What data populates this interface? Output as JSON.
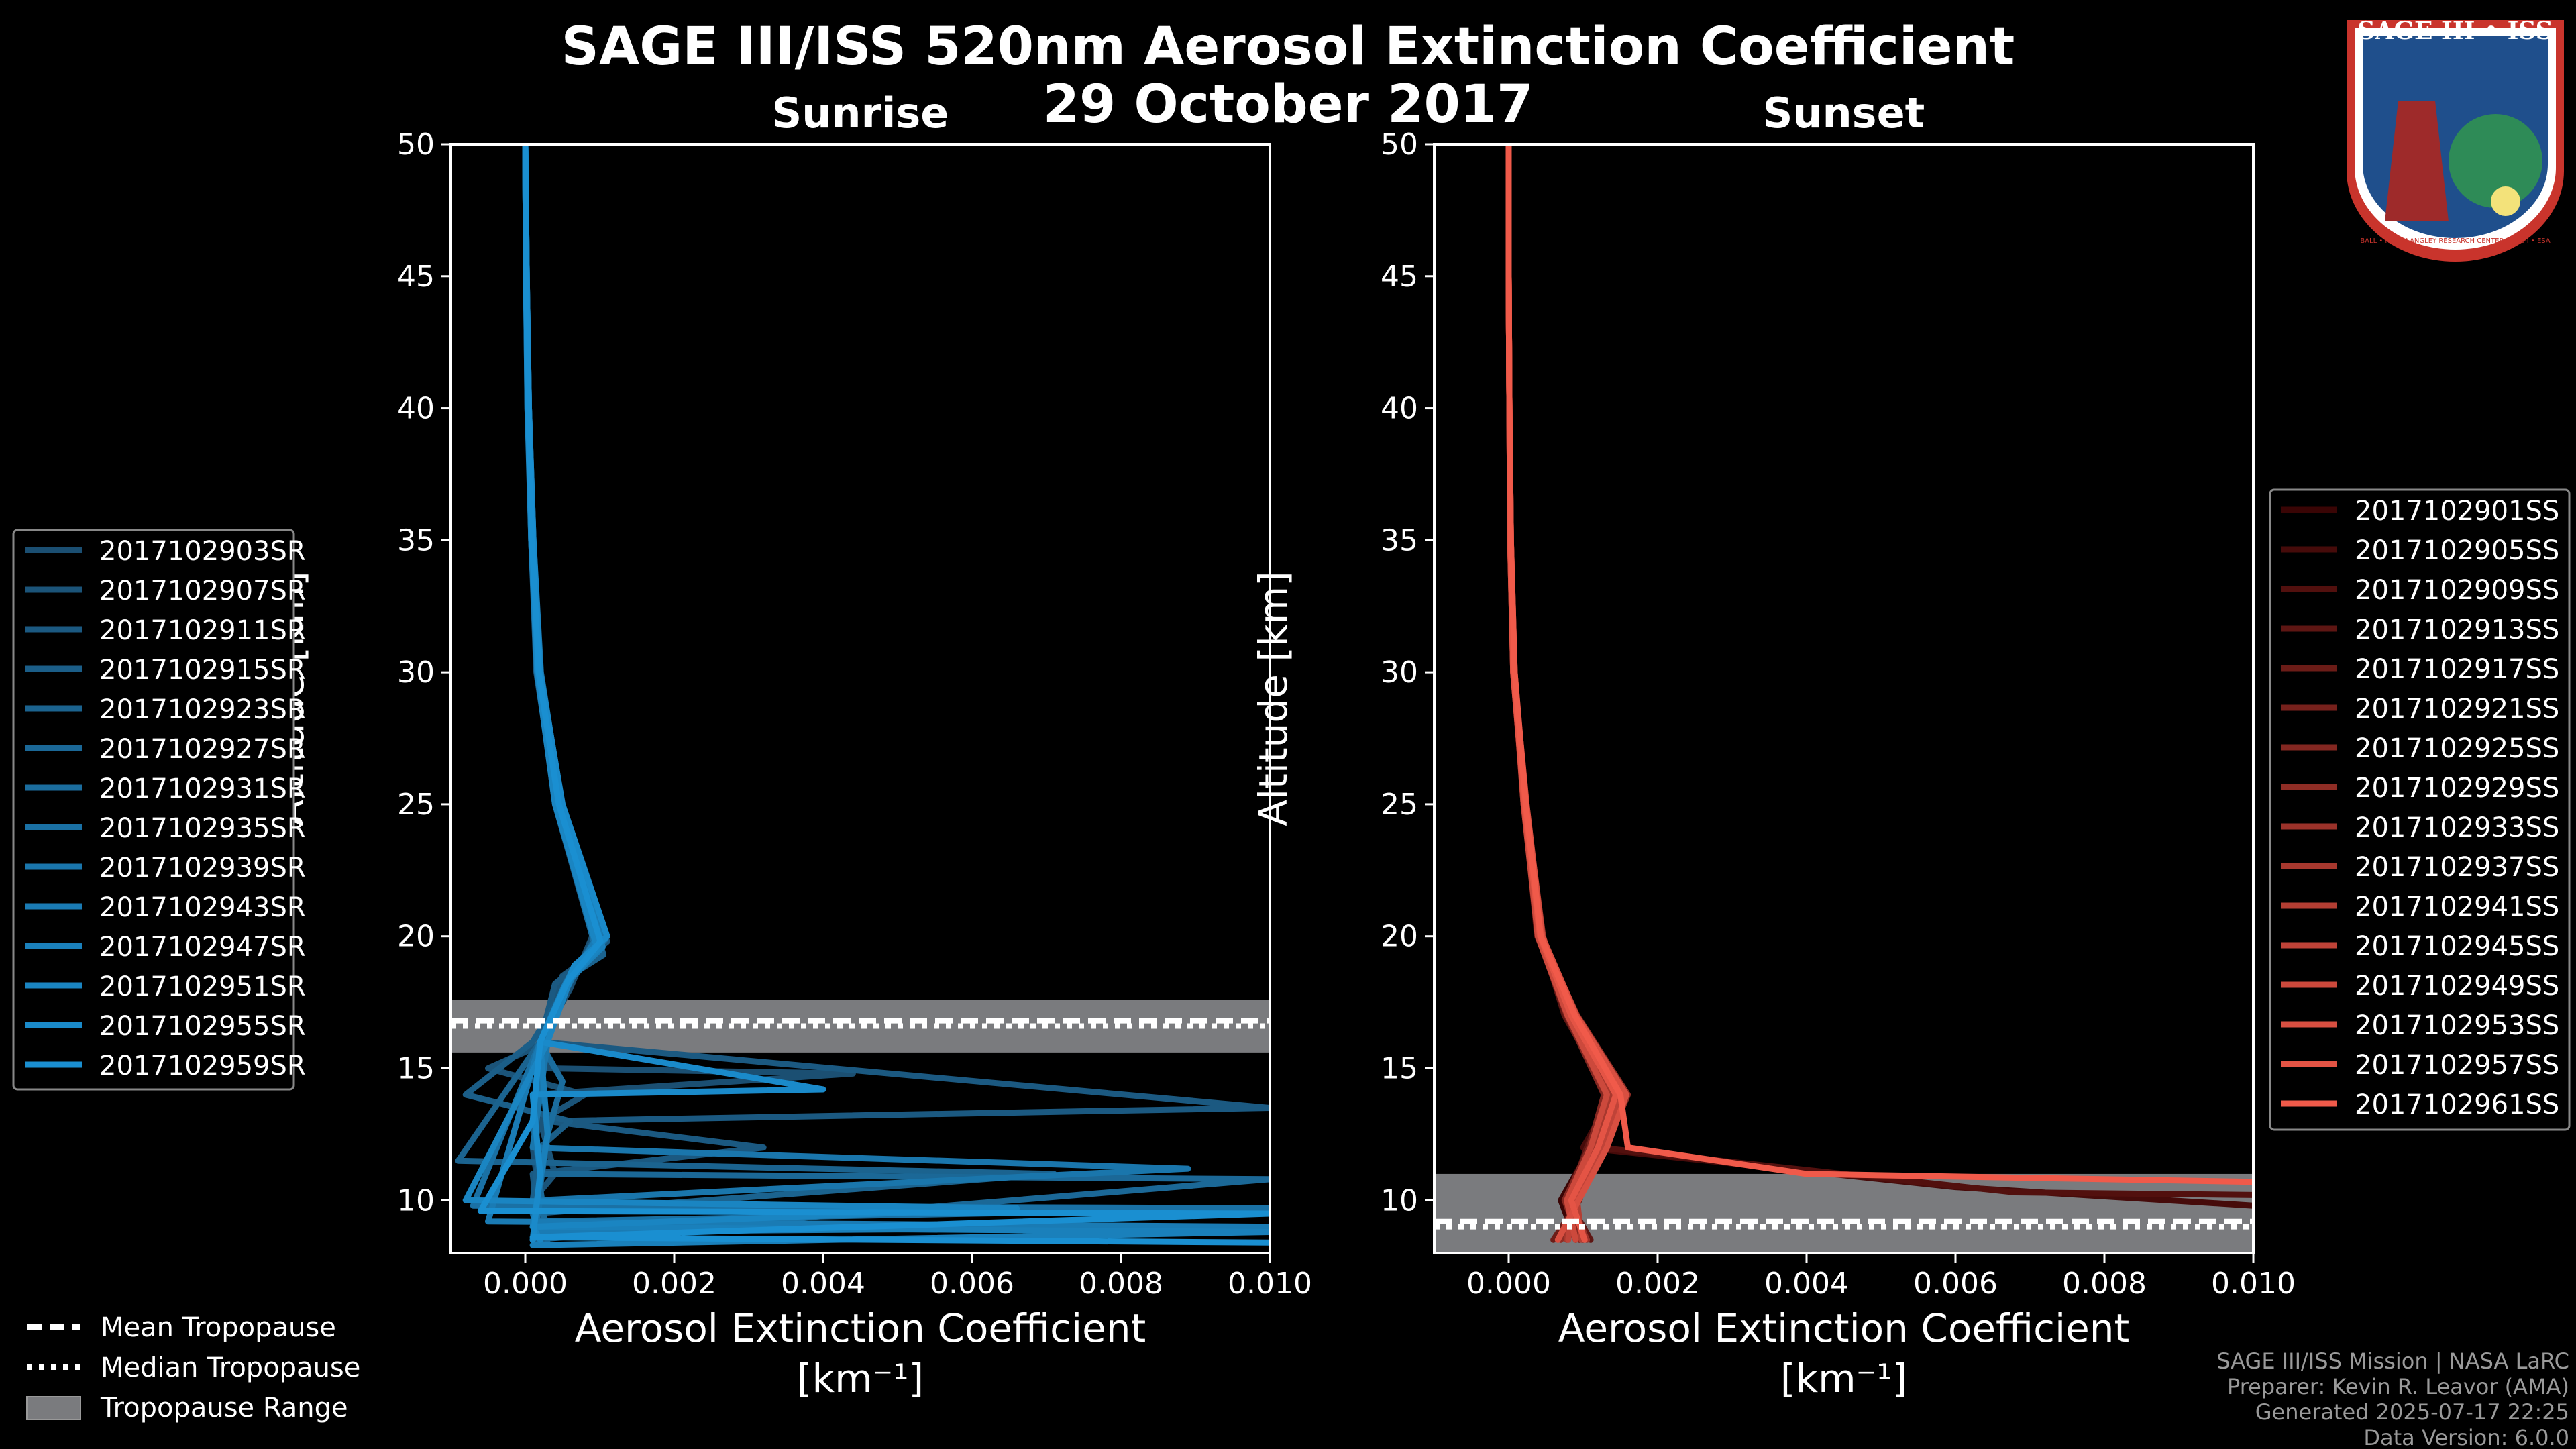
{
  "title_line1": "SAGE III/ISS 520nm Aerosol Extinction Coefficient",
  "title_line2": "29 October 2017",
  "logo": {
    "text": "SAGE III • ISS",
    "ring_text": "BALL • NASA LANGLEY RESEARCH CENTER • TAS-I • ESA"
  },
  "colors": {
    "sunrise": "#1a8fd1",
    "sunset_light": "#f05a4a",
    "sunset_dark": "#3a0505",
    "trop_band": "#7a7b7e"
  },
  "footer": [
    "SAGE III/ISS Mission | NASA LaRC",
    "Preparer: Kevin R. Leavor (AMA)",
    "Generated 2025-07-17 22:25",
    "Data Version: 6.0.0"
  ],
  "tropopause_legend": [
    {
      "style": "dashed",
      "label": "Mean Tropopause"
    },
    {
      "style": "dotted",
      "label": "Median Tropopause"
    },
    {
      "style": "patch",
      "label": "Tropopause Range"
    }
  ],
  "chart_data": [
    {
      "type": "line",
      "title": "Sunrise",
      "xlabel": "Aerosol Extinction Coefficient",
      "xunits": "[km⁻¹]",
      "ylabel": "Altitude [km]",
      "xlim": [
        -0.001,
        0.01
      ],
      "ylim": [
        8,
        50
      ],
      "xticks": [
        "0.000",
        "0.002",
        "0.004",
        "0.006",
        "0.008",
        "0.010"
      ],
      "xtick_values": [
        0,
        0.002,
        0.004,
        0.006,
        0.008,
        0.01
      ],
      "yticks": [
        10,
        15,
        20,
        25,
        30,
        35,
        40,
        45,
        50
      ],
      "tropopause": {
        "mean": 16.8,
        "median": 16.6,
        "min": 15.6,
        "max": 17.6
      },
      "series": [
        {
          "name": "2017102903SR",
          "x": [
            0.0,
            1e-05,
            4e-05,
            8e-05,
            0.00016,
            0.0004,
            0.0009,
            0.0006,
            0.0002,
            0.0003,
            0.0044,
            0.0001,
            0.0002,
            0.0001,
            0.0002,
            0.0003
          ],
          "y": [
            50,
            45,
            40,
            35,
            30,
            25,
            20,
            18,
            16,
            15,
            14.8,
            14,
            13,
            12,
            10,
            8.5
          ]
        },
        {
          "name": "2017102907SR",
          "x": [
            0.0,
            1e-05,
            4e-05,
            9e-05,
            0.00018,
            0.00045,
            0.001,
            0.0005,
            0.0003,
            -0.0005,
            0.0008,
            0.0002,
            0.0004,
            0.0001,
            0.0003
          ],
          "y": [
            50,
            45,
            40,
            35,
            30,
            25,
            19.5,
            18.5,
            16,
            15,
            14,
            13,
            11,
            10,
            8.5
          ]
        },
        {
          "name": "2017102911SR",
          "x": [
            0.0,
            2e-05,
            5e-05,
            0.0001,
            0.0002,
            0.0005,
            0.0011,
            0.0004,
            0.0002,
            0.01,
            0.0003,
            0.0032,
            0.0001,
            0.0002
          ],
          "y": [
            50,
            45,
            40,
            35,
            30,
            25,
            19.8,
            18.2,
            16,
            13.5,
            13,
            12,
            11,
            8.5
          ]
        },
        {
          "name": "2017102915SR",
          "x": [
            0.0,
            1e-05,
            4e-05,
            8e-05,
            0.00015,
            0.00042,
            0.00095,
            0.0007,
            0.0001,
            -0.0008,
            0.0006,
            0.0002,
            0.0001,
            0.0002
          ],
          "y": [
            50,
            45,
            40,
            35,
            30,
            25,
            20,
            18.8,
            16,
            14,
            13,
            12,
            10,
            8.5
          ]
        },
        {
          "name": "2017102923SR",
          "x": [
            0.0,
            2e-05,
            5e-05,
            0.00011,
            0.0002,
            0.00048,
            0.00105,
            0.0006,
            0.0002,
            -0.0009,
            0.0071,
            0.0001,
            0.0002
          ],
          "y": [
            50,
            45,
            40,
            35,
            30,
            25,
            19.3,
            18.5,
            16,
            11.5,
            11,
            9.5,
            8.5
          ]
        },
        {
          "name": "2017102927SR",
          "x": [
            0.0,
            1e-05,
            3e-05,
            9e-05,
            0.00017,
            0.00044,
            0.00098,
            0.00055,
            0.0003,
            0.0001,
            0.0002,
            0.01,
            0.0001
          ],
          "y": [
            50,
            45,
            40,
            35,
            30,
            25,
            19.7,
            18.3,
            16,
            13,
            11,
            10.8,
            8.5
          ]
        },
        {
          "name": "2017102931SR",
          "x": [
            0.0,
            2e-05,
            4e-05,
            0.0001,
            0.00019,
            0.00046,
            0.00102,
            0.00065,
            0.0002,
            0.0005,
            0.0003,
            0.0002,
            0.0003
          ],
          "y": [
            50,
            45,
            40,
            35,
            30,
            25,
            20.2,
            18.6,
            16,
            14.5,
            12.5,
            10.5,
            8.5
          ]
        },
        {
          "name": "2017102935SR",
          "x": [
            0.0,
            1e-05,
            4e-05,
            8e-05,
            0.00016,
            0.00041,
            0.00096,
            0.00052,
            0.0002,
            -0.0007,
            0.01,
            0.0001,
            0.0002
          ],
          "y": [
            50,
            45,
            40,
            35,
            30,
            25,
            19.4,
            18.1,
            16,
            9.8,
            9.7,
            9.2,
            8.5
          ]
        },
        {
          "name": "2017102939SR",
          "x": [
            0.0,
            2e-05,
            5e-05,
            0.00011,
            0.00021,
            0.00049,
            0.00108,
            0.00058,
            0.0003,
            0.0001,
            0.0089,
            0.0002,
            0.0001
          ],
          "y": [
            50,
            45,
            40,
            35,
            30,
            25,
            19.9,
            18.4,
            16,
            12,
            11.2,
            10,
            8.5
          ]
        },
        {
          "name": "2017102943SR",
          "x": [
            0.0,
            1e-05,
            4e-05,
            9e-05,
            0.00017,
            0.00043,
            0.001,
            0.00068,
            0.0002,
            -0.0005,
            0.01,
            0.0002,
            0.0001
          ],
          "y": [
            50,
            45,
            40,
            35,
            30,
            25,
            20.1,
            18.7,
            16,
            9.2,
            9.0,
            8.8,
            8.5
          ]
        },
        {
          "name": "2017102947SR",
          "x": [
            0.0,
            2e-05,
            5e-05,
            0.0001,
            0.00019,
            0.00047,
            0.00104,
            0.00054,
            0.0002,
            0.0003,
            0.0001,
            0.01,
            0.0001
          ],
          "y": [
            50,
            45,
            40,
            35,
            30,
            25,
            19.6,
            18.2,
            16,
            12.5,
            9,
            8.8,
            8.3
          ]
        },
        {
          "name": "2017102951SR",
          "x": [
            0.0,
            1e-05,
            3e-05,
            8e-05,
            0.00016,
            0.0004,
            0.00097,
            0.00062,
            0.0003,
            -0.0008,
            0.0066,
            0.0001,
            0.0002
          ],
          "y": [
            50,
            45,
            40,
            35,
            30,
            25,
            19.5,
            18.5,
            16,
            10,
            9.7,
            9,
            8.5
          ]
        },
        {
          "name": "2017102955SR",
          "x": [
            0.0,
            2e-05,
            5e-05,
            0.00011,
            0.0002,
            0.0005,
            0.0011,
            0.00066,
            0.0002,
            0.004,
            0.0001,
            0.0002,
            0.0001
          ],
          "y": [
            50,
            45,
            40,
            35,
            30,
            25,
            20,
            18.9,
            16,
            14.2,
            14,
            11,
            8.5
          ]
        },
        {
          "name": "2017102959SR",
          "x": [
            0.0,
            1e-05,
            4e-05,
            9e-05,
            0.00018,
            0.00045,
            0.00101,
            0.00057,
            0.0002,
            0.0001,
            -0.0006,
            0.01,
            0.0001,
            0.01
          ],
          "y": [
            50,
            45,
            40,
            35,
            30,
            25,
            19.8,
            18.3,
            16,
            13,
            9.6,
            9.5,
            8.6,
            8.4
          ]
        }
      ]
    },
    {
      "type": "line",
      "title": "Sunset",
      "xlabel": "Aerosol Extinction Coefficient",
      "xunits": "[km⁻¹]",
      "ylabel": "Altitude [km]",
      "xlim": [
        -0.001,
        0.01
      ],
      "ylim": [
        8,
        50
      ],
      "xticks": [
        "0.000",
        "0.002",
        "0.004",
        "0.006",
        "0.008",
        "0.010"
      ],
      "xtick_values": [
        0,
        0.002,
        0.004,
        0.006,
        0.008,
        0.01
      ],
      "yticks": [
        10,
        15,
        20,
        25,
        30,
        35,
        40,
        45,
        50
      ],
      "tropopause": {
        "mean": 9.2,
        "median": 9.0,
        "min": 8.0,
        "max": 11.0
      },
      "series": [
        {
          "name": "2017102901SS",
          "x": [
            0.0,
            0.0,
            1e-05,
            2e-05,
            6e-05,
            0.0002,
            0.0004,
            0.0008,
            0.0013,
            0.0011,
            0.0007,
            0.0009
          ],
          "y": [
            50,
            45,
            40,
            35,
            30,
            25,
            20,
            17,
            14,
            12,
            10,
            8.5
          ]
        },
        {
          "name": "2017102905SS",
          "x": [
            0.0,
            0.0,
            1e-05,
            3e-05,
            7e-05,
            0.00022,
            0.00045,
            0.00085,
            0.0014,
            0.001,
            0.006,
            0.01
          ],
          "y": [
            50,
            45,
            40,
            35,
            30,
            25,
            20,
            17,
            14,
            12,
            10.5,
            9.8
          ]
        },
        {
          "name": "2017102909SS",
          "x": [
            0.0,
            0.0,
            1e-05,
            2e-05,
            6e-05,
            0.00021,
            0.00038,
            0.0009,
            0.0015,
            0.0012,
            0.0068,
            0.01
          ],
          "y": [
            50,
            45,
            40,
            35,
            30,
            25,
            20,
            17,
            14,
            12,
            10.3,
            10.2
          ]
        },
        {
          "name": "2017102913SS",
          "x": [
            0.0,
            0.0,
            1e-05,
            3e-05,
            8e-05,
            0.00023,
            0.00042,
            0.00075,
            0.00135,
            0.00105,
            0.0008,
            0.0011
          ],
          "y": [
            50,
            45,
            40,
            35,
            30,
            25,
            20,
            17,
            14,
            12,
            10,
            8.5
          ]
        },
        {
          "name": "2017102917SS",
          "x": [
            0.0,
            0.0,
            1e-05,
            2e-05,
            7e-05,
            0.0002,
            0.00041,
            0.00088,
            0.00145,
            0.00115,
            0.00095,
            0.0006
          ],
          "y": [
            50,
            45,
            40,
            35,
            30,
            25,
            20,
            17,
            14,
            12,
            10,
            8.5
          ]
        },
        {
          "name": "2017102921SS",
          "x": [
            0.0,
            0.0,
            1e-05,
            3e-05,
            7e-05,
            0.00024,
            0.00044,
            0.00082,
            0.00155,
            0.00125,
            0.00085,
            0.001
          ],
          "y": [
            50,
            45,
            40,
            35,
            30,
            25,
            20,
            17,
            14,
            12,
            10,
            8.5
          ]
        },
        {
          "name": "2017102925SS",
          "x": [
            0.0,
            0.0,
            1e-05,
            2e-05,
            6e-05,
            0.00021,
            0.00039,
            0.00078,
            0.00128,
            0.00108,
            0.00075,
            0.00095
          ],
          "y": [
            50,
            45,
            40,
            35,
            30,
            25,
            20,
            17,
            14,
            12,
            10,
            8.5
          ]
        },
        {
          "name": "2017102929SS",
          "x": [
            0.0,
            0.0,
            1e-05,
            3e-05,
            8e-05,
            0.00022,
            0.00043,
            0.00092,
            0.0016,
            0.0013,
            0.0009,
            0.0007
          ],
          "y": [
            50,
            45,
            40,
            35,
            30,
            25,
            20,
            17,
            14,
            12,
            10,
            8.5
          ]
        },
        {
          "name": "2017102933SS",
          "x": [
            0.0,
            0.0,
            1e-05,
            2e-05,
            7e-05,
            0.0002,
            0.0004,
            0.00086,
            0.00142,
            0.00112,
            0.00082,
            0.00105
          ],
          "y": [
            50,
            45,
            40,
            35,
            30,
            25,
            20,
            17,
            14,
            12,
            10,
            8.5
          ]
        },
        {
          "name": "2017102937SS",
          "x": [
            0.0,
            0.0,
            1e-05,
            3e-05,
            7e-05,
            0.00023,
            0.00046,
            0.0008,
            0.00138,
            0.00118,
            0.00088,
            0.00078
          ],
          "y": [
            50,
            45,
            40,
            35,
            30,
            25,
            20,
            17,
            14,
            12,
            10,
            8.5
          ]
        },
        {
          "name": "2017102941SS",
          "x": [
            0.0,
            0.0,
            1e-05,
            2e-05,
            6e-05,
            0.00021,
            0.00041,
            0.00087,
            0.00148,
            0.00122,
            0.00092,
            0.00098
          ],
          "y": [
            50,
            45,
            40,
            35,
            30,
            25,
            20,
            17,
            14,
            12,
            10,
            8.5
          ]
        },
        {
          "name": "2017102945SS",
          "x": [
            0.0,
            0.0,
            1e-05,
            3e-05,
            8e-05,
            0.00022,
            0.00044,
            0.00083,
            0.00152,
            0.00128,
            0.00086,
            0.0008
          ],
          "y": [
            50,
            45,
            40,
            35,
            30,
            25,
            20,
            17,
            14,
            12,
            10,
            8.5
          ]
        },
        {
          "name": "2017102949SS",
          "x": [
            0.0,
            0.0,
            1e-05,
            2e-05,
            7e-05,
            0.0002,
            0.00039,
            0.00079,
            0.00132,
            0.0011,
            0.00078,
            0.0009
          ],
          "y": [
            50,
            45,
            40,
            35,
            30,
            25,
            20,
            17,
            14,
            12,
            10,
            8.5
          ]
        },
        {
          "name": "2017102953SS",
          "x": [
            0.0,
            0.0,
            1e-05,
            3e-05,
            7e-05,
            0.00024,
            0.00045,
            0.00091,
            0.00158,
            0.00132,
            0.00094,
            0.00066
          ],
          "y": [
            50,
            45,
            40,
            35,
            30,
            25,
            20,
            17,
            14,
            12,
            10,
            8.5
          ]
        },
        {
          "name": "2017102957SS",
          "x": [
            0.0,
            0.0,
            1e-05,
            2e-05,
            6e-05,
            0.00021,
            0.00042,
            0.00084,
            0.00144,
            0.0012,
            0.00084,
            0.00102
          ],
          "y": [
            50,
            45,
            40,
            35,
            30,
            25,
            20,
            17,
            14,
            12,
            10,
            8.5
          ]
        },
        {
          "name": "2017102961SS",
          "x": [
            0.0,
            0.0,
            1e-05,
            3e-05,
            8e-05,
            0.00023,
            0.00043,
            0.00089,
            0.0015,
            0.0016,
            0.004,
            0.01
          ],
          "y": [
            50,
            45,
            40,
            35,
            30,
            25,
            20,
            17,
            14,
            12,
            11,
            10.7
          ]
        }
      ]
    }
  ]
}
